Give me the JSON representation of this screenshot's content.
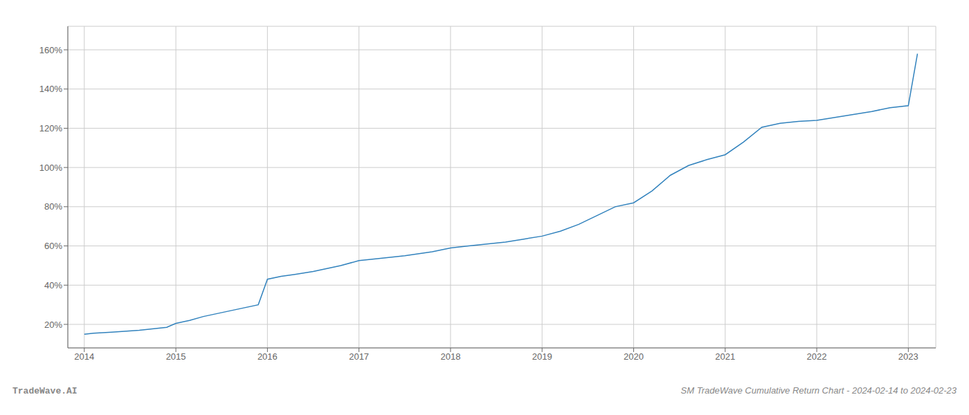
{
  "chart_data": {
    "type": "line",
    "x": [
      2014.0,
      2014.1,
      2014.3,
      2014.6,
      2014.9,
      2015.0,
      2015.15,
      2015.3,
      2015.6,
      2015.9,
      2016.0,
      2016.15,
      2016.3,
      2016.5,
      2016.8,
      2017.0,
      2017.2,
      2017.5,
      2017.8,
      2018.0,
      2018.2,
      2018.4,
      2018.6,
      2018.8,
      2019.0,
      2019.2,
      2019.4,
      2019.6,
      2019.8,
      2020.0,
      2020.2,
      2020.4,
      2020.6,
      2020.8,
      2021.0,
      2021.2,
      2021.4,
      2021.6,
      2021.8,
      2022.0,
      2022.2,
      2022.4,
      2022.6,
      2022.8,
      2023.0,
      2023.1
    ],
    "values": [
      15.0,
      15.5,
      16.0,
      17.0,
      18.5,
      20.5,
      22.0,
      24.0,
      27.0,
      30.0,
      43.0,
      44.5,
      45.5,
      47.0,
      50.0,
      52.5,
      53.5,
      55.0,
      57.0,
      59.0,
      60.0,
      61.0,
      62.0,
      63.5,
      65.0,
      67.5,
      71.0,
      75.5,
      80.0,
      82.0,
      88.0,
      96.0,
      101.0,
      104.0,
      106.5,
      113.0,
      120.5,
      122.5,
      123.5,
      124.0,
      125.5,
      127.0,
      128.5,
      130.5,
      131.5,
      158.0
    ],
    "xlim": [
      2013.82,
      2023.3
    ],
    "ylim": [
      8,
      172
    ],
    "xticks": [
      2014,
      2015,
      2016,
      2017,
      2018,
      2019,
      2020,
      2021,
      2022,
      2023
    ],
    "yticks": [
      {
        "value": 20,
        "label": "20%"
      },
      {
        "value": 40,
        "label": "40%"
      },
      {
        "value": 60,
        "label": "60%"
      },
      {
        "value": 80,
        "label": "80%"
      },
      {
        "value": 100,
        "label": "100%"
      },
      {
        "value": 120,
        "label": "120%"
      },
      {
        "value": 140,
        "label": "140%"
      },
      {
        "value": 160,
        "label": "160%"
      }
    ],
    "grid": true,
    "annotations": [
      "TradeWave.AI",
      "SM TradeWave Cumulative Return Chart - 2024-02-14 to 2024-02-23"
    ]
  }
}
